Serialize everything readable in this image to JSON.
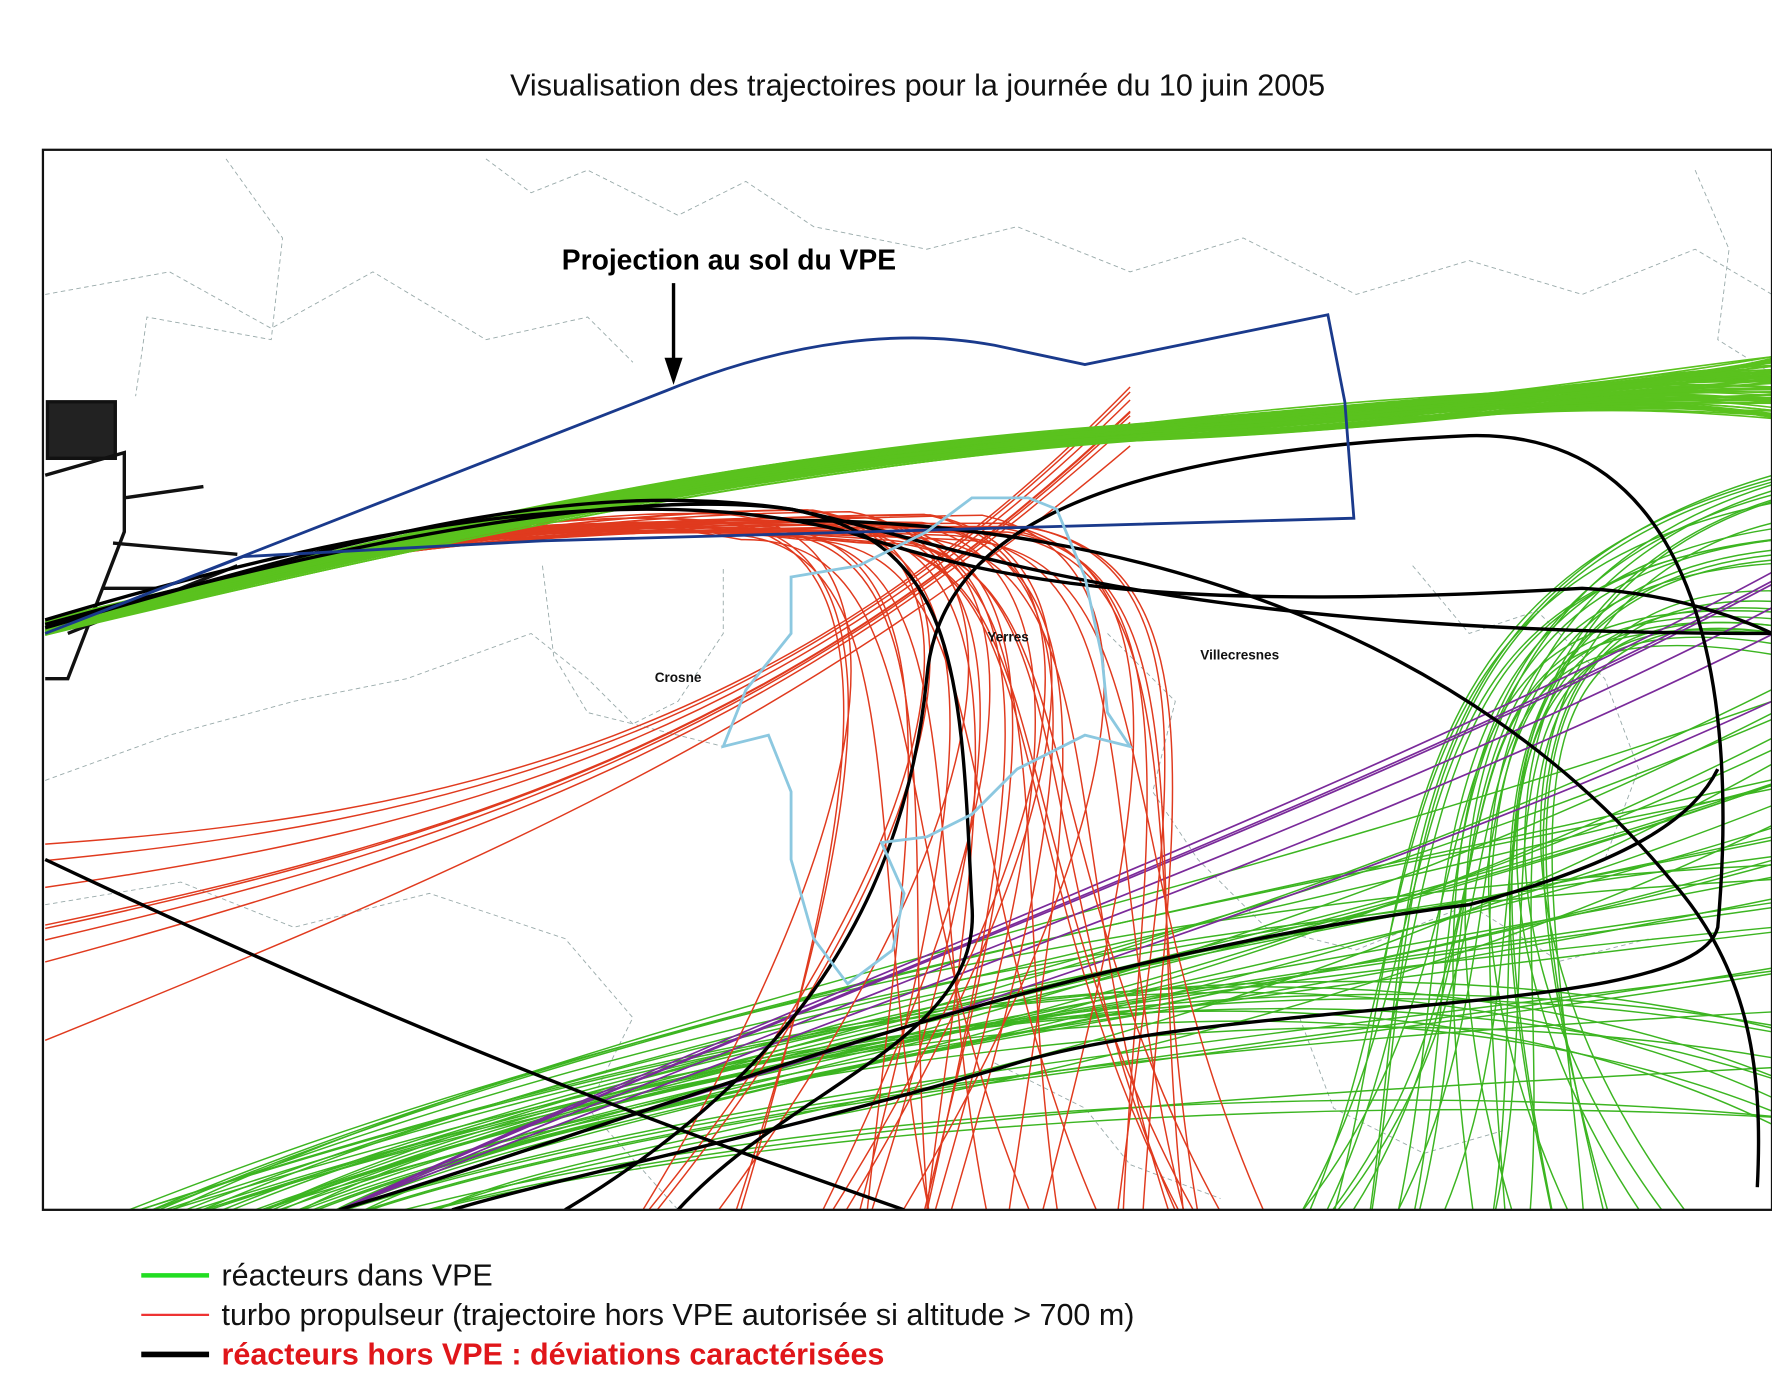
{
  "title": "Visualisation des trajectoires pour la journée du 10 juin 2005",
  "annotation": "Projection au sol du VPE",
  "places": [
    "Crosne",
    "Yerres",
    "Villecresnes"
  ],
  "legend": [
    "réacteurs dans VPE",
    "turbo propulseur (trajectoire hors VPE autorisée si altitude > 700 m)",
    "réacteurs hors VPE : déviations caractérisées"
  ]
}
